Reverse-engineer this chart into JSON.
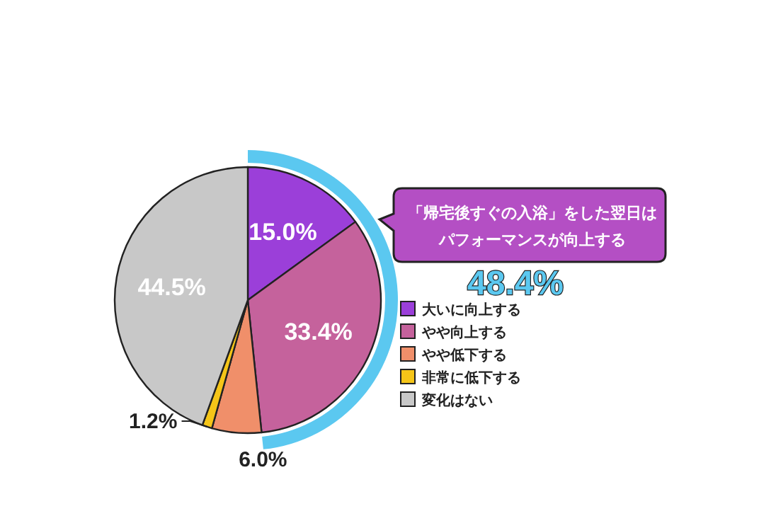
{
  "chart_data": {
    "type": "pie",
    "categories": [
      "大いに向上する",
      "やや向上する",
      "やや低下する",
      "非常に低下する",
      "変化はない"
    ],
    "values": [
      15.0,
      33.4,
      6.0,
      1.2,
      44.5
    ],
    "colors": [
      "#9b3fd9",
      "#c5629c",
      "#f08f6a",
      "#f5c518",
      "#c8c8c8"
    ],
    "value_labels": [
      "15.0%",
      "33.4%",
      "6.0%",
      "1.2%",
      "44.5%"
    ],
    "legend": "right",
    "annotations": [
      "「帰宅後すぐの入浴」をした翌日は",
      "パフォーマンスが向上する",
      "48.4%"
    ]
  }
}
